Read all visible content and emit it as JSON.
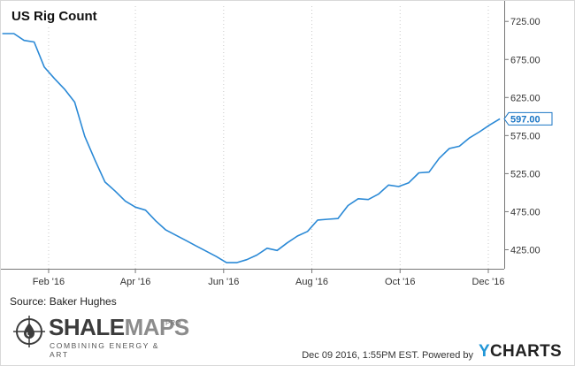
{
  "chart_data": {
    "type": "line",
    "title": "US Rig Count",
    "series": [
      {
        "values": [
          [
            "2015-12-31",
            709
          ],
          [
            "2016-01-08",
            709
          ],
          [
            "2016-01-15",
            700
          ],
          [
            "2016-01-22",
            698
          ],
          [
            "2016-01-29",
            665
          ],
          [
            "2016-02-05",
            650
          ],
          [
            "2016-02-12",
            636
          ],
          [
            "2016-02-19",
            619
          ],
          [
            "2016-02-26",
            574
          ],
          [
            "2016-03-04",
            543
          ],
          [
            "2016-03-11",
            514
          ],
          [
            "2016-03-18",
            502
          ],
          [
            "2016-03-25",
            489
          ],
          [
            "2016-04-01",
            481
          ],
          [
            "2016-04-08",
            477
          ],
          [
            "2016-04-15",
            463
          ],
          [
            "2016-04-22",
            451
          ],
          [
            "2016-04-29",
            444
          ],
          [
            "2016-05-06",
            437
          ],
          [
            "2016-05-13",
            430
          ],
          [
            "2016-05-20",
            423
          ],
          [
            "2016-05-27",
            416
          ],
          [
            "2016-06-03",
            408
          ],
          [
            "2016-06-10",
            408
          ],
          [
            "2016-06-17",
            412
          ],
          [
            "2016-06-24",
            418
          ],
          [
            "2016-07-01",
            427
          ],
          [
            "2016-07-08",
            424
          ],
          [
            "2016-07-15",
            434
          ],
          [
            "2016-07-22",
            443
          ],
          [
            "2016-07-29",
            449
          ],
          [
            "2016-08-05",
            464
          ],
          [
            "2016-08-12",
            465
          ],
          [
            "2016-08-19",
            466
          ],
          [
            "2016-08-26",
            483
          ],
          [
            "2016-09-02",
            492
          ],
          [
            "2016-09-09",
            491
          ],
          [
            "2016-09-16",
            498
          ],
          [
            "2016-09-23",
            510
          ],
          [
            "2016-09-30",
            508
          ],
          [
            "2016-10-07",
            513
          ],
          [
            "2016-10-14",
            526
          ],
          [
            "2016-10-21",
            527
          ],
          [
            "2016-10-28",
            545
          ],
          [
            "2016-11-04",
            558
          ],
          [
            "2016-11-11",
            561
          ],
          [
            "2016-11-18",
            572
          ],
          [
            "2016-11-25",
            580
          ],
          [
            "2016-12-02",
            589
          ],
          [
            "2016-12-09",
            597
          ]
        ]
      }
    ],
    "x_range": [
      "2015-12-30",
      "2016-12-12"
    ],
    "ylim": [
      400,
      745
    ],
    "y_ticks": [
      425,
      475,
      525,
      575,
      625,
      675,
      725
    ],
    "y_tick_labels": [
      "425.00",
      "475.00",
      "525.00",
      "575.00",
      "625.00",
      "675.00",
      "725.00"
    ],
    "x_ticks": [
      "2016-02-01",
      "2016-04-01",
      "2016-06-01",
      "2016-08-01",
      "2016-10-01",
      "2016-12-01"
    ],
    "x_tick_labels": [
      "Feb '16",
      "Apr '16",
      "Jun '16",
      "Aug '16",
      "Oct '16",
      "Dec '16"
    ],
    "last_value_label": "597.00",
    "y_axis_side": "right",
    "grid": "vertical-dotted",
    "line_color": "#2a89d6"
  },
  "source": "Source: Baker Hughes",
  "logo": {
    "part1": "SHALE",
    "part2": "MAPS",
    "pro": "PRO",
    "tagline": "COMBINING ENERGY & ART"
  },
  "footer": {
    "timestamp": "Dec 09 2016, 1:55PM EST.",
    "powered_by": "Powered by",
    "brand_y": "Y",
    "brand_rest": "CHARTS"
  }
}
